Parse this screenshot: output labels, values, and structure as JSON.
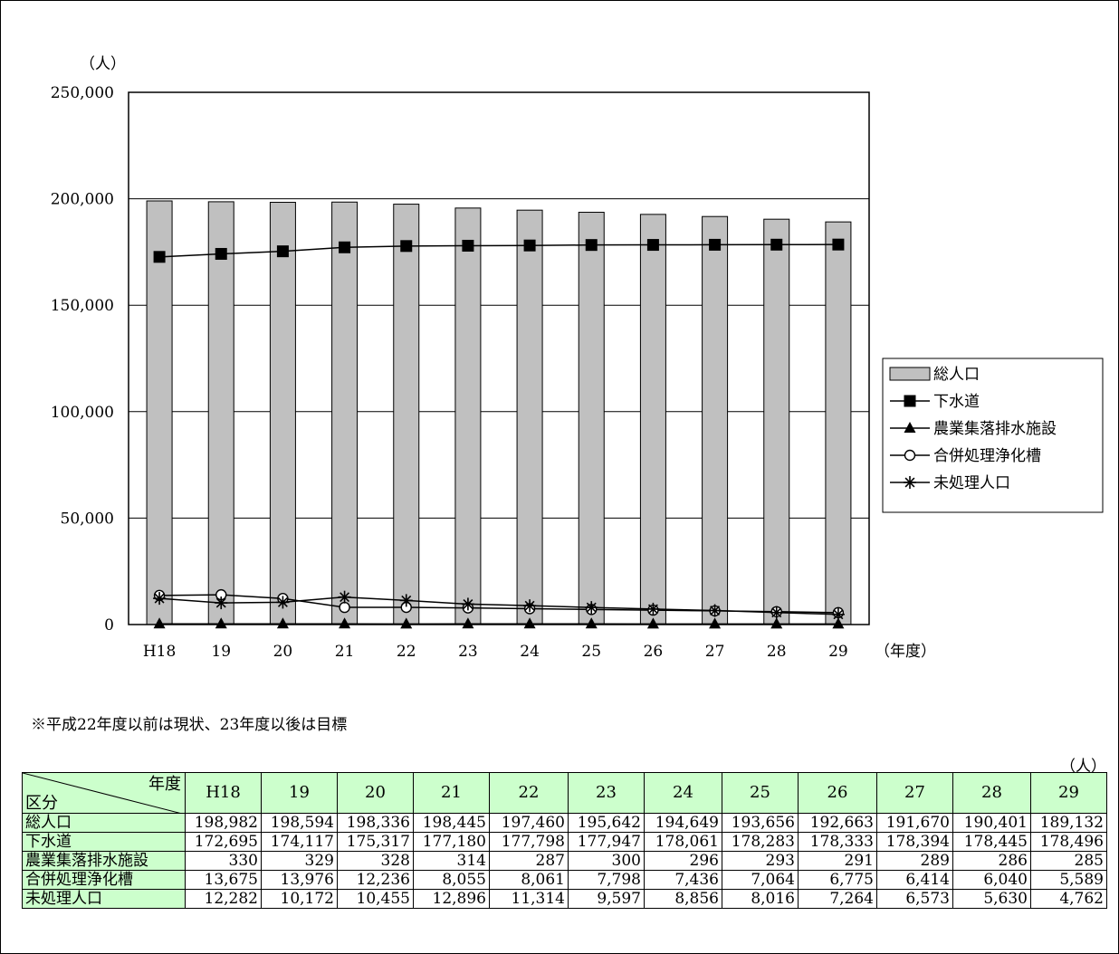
{
  "chart_data": {
    "type": "bar",
    "ylabel": "（人）",
    "xlabel": "（年度）",
    "ylim": [
      0,
      250000
    ],
    "yticks": [
      0,
      50000,
      100000,
      150000,
      200000,
      250000
    ],
    "ytick_labels": [
      "0",
      "50,000",
      "100,000",
      "150,000",
      "200,000",
      "250,000"
    ],
    "categories": [
      "H18",
      "19",
      "20",
      "21",
      "22",
      "23",
      "24",
      "25",
      "26",
      "27",
      "28",
      "29"
    ],
    "legend_position": "right",
    "grid": true,
    "series": [
      {
        "name": "総人口",
        "type": "bar",
        "marker": "bar",
        "values": [
          198982,
          198594,
          198336,
          198445,
          197460,
          195642,
          194649,
          193656,
          192663,
          191670,
          190401,
          189132
        ]
      },
      {
        "name": "下水道",
        "type": "line",
        "marker": "square",
        "values": [
          172695,
          174117,
          175317,
          177180,
          177798,
          177947,
          178061,
          178283,
          178333,
          178394,
          178445,
          178496
        ]
      },
      {
        "name": "農業集落排水施設",
        "type": "line",
        "marker": "triangle",
        "values": [
          330,
          329,
          328,
          314,
          287,
          300,
          296,
          293,
          291,
          289,
          286,
          285
        ]
      },
      {
        "name": "合併処理浄化槽",
        "type": "line",
        "marker": "circle",
        "values": [
          13675,
          13976,
          12236,
          8055,
          8061,
          7798,
          7436,
          7064,
          6775,
          6414,
          6040,
          5589
        ]
      },
      {
        "name": "未処理人口",
        "type": "line",
        "marker": "asterisk",
        "values": [
          12282,
          10172,
          10455,
          12896,
          11314,
          9597,
          8856,
          8016,
          7264,
          6573,
          5630,
          4762
        ]
      }
    ],
    "colors": {
      "bar_fill": "#c0c0c0",
      "line": "#000000"
    }
  },
  "note": "※平成22年度以前は現状、23年度以後は目標",
  "table": {
    "unit": "（人）",
    "corner_top": "年度",
    "corner_bottom": "区分",
    "headers": [
      "H18",
      "19",
      "20",
      "21",
      "22",
      "23",
      "24",
      "25",
      "26",
      "27",
      "28",
      "29"
    ],
    "rows": [
      {
        "label": "総人口",
        "values": [
          "198,982",
          "198,594",
          "198,336",
          "198,445",
          "197,460",
          "195,642",
          "194,649",
          "193,656",
          "192,663",
          "191,670",
          "190,401",
          "189,132"
        ]
      },
      {
        "label": "下水道",
        "values": [
          "172,695",
          "174,117",
          "175,317",
          "177,180",
          "177,798",
          "177,947",
          "178,061",
          "178,283",
          "178,333",
          "178,394",
          "178,445",
          "178,496"
        ]
      },
      {
        "label": "農業集落排水施設",
        "values": [
          "330",
          "329",
          "328",
          "314",
          "287",
          "300",
          "296",
          "293",
          "291",
          "289",
          "286",
          "285"
        ]
      },
      {
        "label": "合併処理浄化槽",
        "values": [
          "13,675",
          "13,976",
          "12,236",
          "8,055",
          "8,061",
          "7,798",
          "7,436",
          "7,064",
          "6,775",
          "6,414",
          "6,040",
          "5,589"
        ]
      },
      {
        "label": "未処理人口",
        "values": [
          "12,282",
          "10,172",
          "10,455",
          "12,896",
          "11,314",
          "9,597",
          "8,856",
          "8,016",
          "7,264",
          "6,573",
          "5,630",
          "4,762"
        ]
      }
    ]
  }
}
